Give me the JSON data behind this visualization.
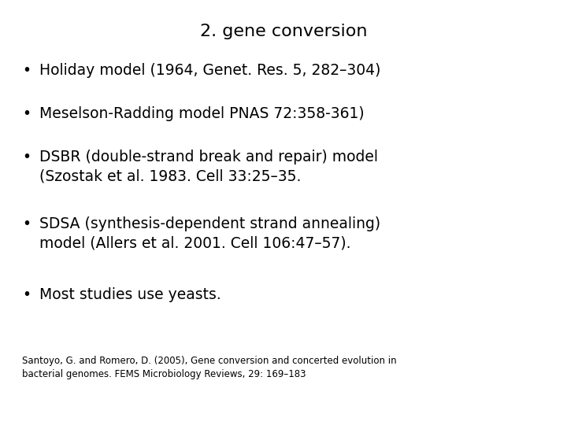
{
  "title": "2. gene conversion",
  "bullet_points": [
    "Holiday model (1964, Genet. Res. 5, 282–304)",
    "Meselson-Radding model PNAS 72:358-361)",
    "DSBR (double-strand break and repair) model\n(Szostak et al. 1983. Cell 33:25–35.",
    "SDSA (synthesis-dependent strand annealing)\nmodel (Allers et al. 2001. Cell 106:47–57).",
    "Most studies use yeasts."
  ],
  "footnote": "Santoyo, G. and Romero, D. (2005), Gene conversion and concerted evolution in\nbacterial genomes. FEMS Microbiology Reviews, 29: 169–183",
  "bg_color": "#ffffff",
  "text_color": "#000000",
  "title_fontsize": 16,
  "bullet_fontsize": 13.5,
  "footnote_fontsize": 8.5
}
